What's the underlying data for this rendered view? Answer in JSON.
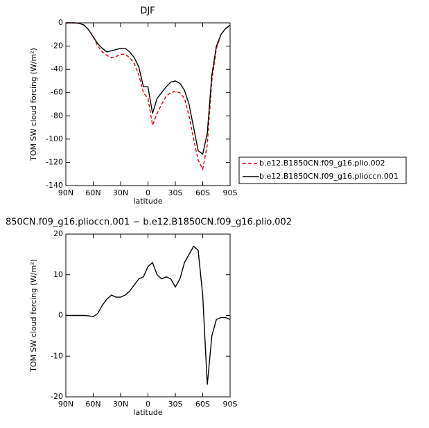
{
  "chart_data": [
    {
      "type": "line",
      "title": "DJF",
      "xlabel": "latitude",
      "ylabel": "TOM SW cloud forcing (W/m²)",
      "x": [
        90,
        85,
        80,
        75,
        70,
        65,
        60,
        55,
        50,
        45,
        40,
        35,
        30,
        25,
        20,
        15,
        10,
        5,
        0,
        -5,
        -10,
        -15,
        -20,
        -25,
        -30,
        -35,
        -40,
        -45,
        -50,
        -55,
        -60,
        -65,
        -70,
        -75,
        -80,
        -85,
        -90
      ],
      "series": [
        {
          "name": "b.e12.B1850CN.f09_g16.plio.002",
          "color": "#e00000",
          "dash": true,
          "values": [
            0,
            0,
            0,
            -0.5,
            -2,
            -6,
            -12,
            -20,
            -25,
            -28,
            -30,
            -29,
            -27,
            -27,
            -30,
            -35,
            -45,
            -60,
            -65,
            -88,
            -78,
            -70,
            -63,
            -60,
            -59,
            -60,
            -65,
            -80,
            -100,
            -118,
            -126,
            -105,
            -50,
            -22,
            -10,
            -5,
            -2
          ]
        },
        {
          "name": "b.e12.B1850CN.f09_g16.plioccn.001",
          "color": "#000000",
          "dash": false,
          "values": [
            0,
            0,
            0,
            -0.5,
            -2,
            -6,
            -12,
            -18,
            -22,
            -25,
            -24,
            -23,
            -22,
            -22,
            -25,
            -30,
            -38,
            -55,
            -55,
            -78,
            -65,
            -60,
            -55,
            -51,
            -50,
            -52,
            -58,
            -70,
            -90,
            -110,
            -113,
            -95,
            -45,
            -20,
            -10,
            -5,
            -2
          ]
        }
      ],
      "xlim": [
        90,
        -90
      ],
      "xticks": [
        {
          "value": 90,
          "label": "90N"
        },
        {
          "value": 60,
          "label": "60N"
        },
        {
          "value": 30,
          "label": "30N"
        },
        0,
        {
          "value": -30,
          "label": "30S"
        },
        {
          "value": -60,
          "label": "60S"
        },
        {
          "value": -90,
          "label": "90S"
        }
      ],
      "ylim": [
        -140,
        0
      ],
      "yticks": [
        -140,
        -120,
        -100,
        -80,
        -60,
        -40,
        -20,
        0
      ],
      "legend": "right"
    },
    {
      "type": "line",
      "title": "850CN.f09_g16.plioccn.001 − b.e12.B1850CN.f09_g16.plio.002",
      "xlabel": "latitude",
      "ylabel": "TOM SW cloud forcing (W/m²)",
      "x": [
        90,
        85,
        80,
        75,
        70,
        65,
        60,
        55,
        50,
        45,
        40,
        35,
        30,
        25,
        20,
        15,
        10,
        5,
        0,
        -5,
        -10,
        -15,
        -20,
        -25,
        -30,
        -35,
        -40,
        -45,
        -50,
        -55,
        -60,
        -65,
        -70,
        -75,
        -80,
        -85,
        -90
      ],
      "series": [
        {
          "color": "#000000",
          "dash": false,
          "values": [
            0,
            0,
            0,
            0,
            0,
            -0.1,
            -0.3,
            0.5,
            2.5,
            4,
            5,
            4.5,
            4.5,
            5,
            6,
            7.5,
            9,
            9.5,
            12,
            13,
            10,
            9,
            9.5,
            9,
            7,
            9,
            13,
            15,
            17,
            16,
            5,
            -17,
            -5,
            -1,
            -0.5,
            -0.5,
            -1
          ]
        }
      ],
      "xlim": [
        90,
        -90
      ],
      "xticks": [
        {
          "value": 90,
          "label": "90N"
        },
        {
          "value": 60,
          "label": "60N"
        },
        {
          "value": 30,
          "label": "30N"
        },
        0,
        {
          "value": -30,
          "label": "30S"
        },
        {
          "value": -60,
          "label": "60S"
        },
        {
          "value": -90,
          "label": "90S"
        }
      ],
      "ylim": [
        -20,
        20
      ],
      "yticks": [
        -20,
        -10,
        0,
        10,
        20
      ]
    }
  ]
}
